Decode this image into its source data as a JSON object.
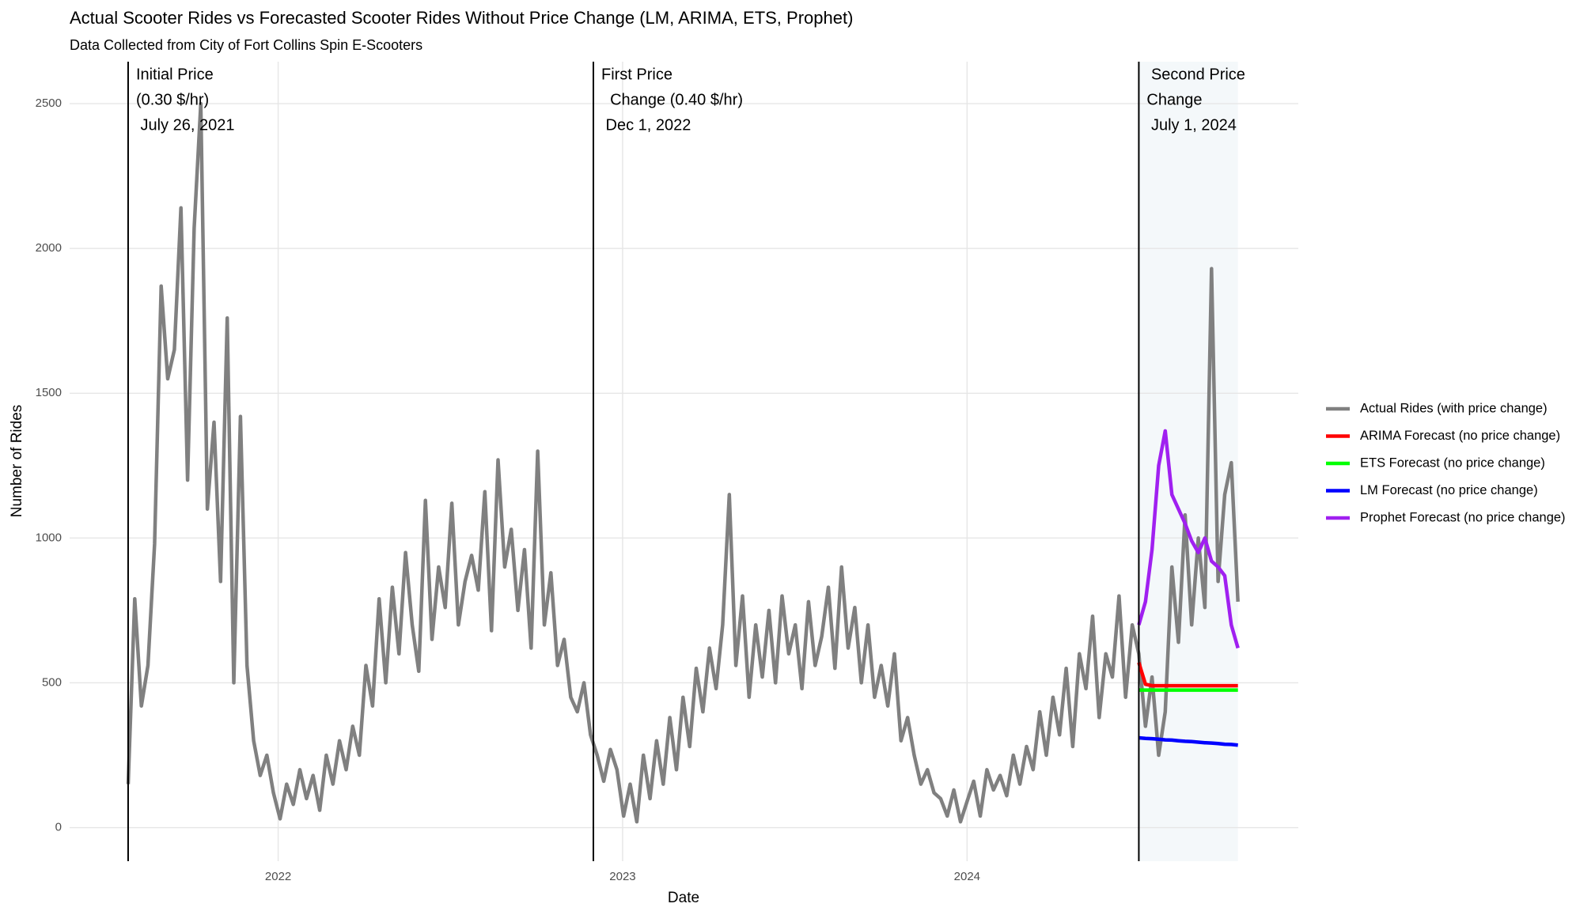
{
  "chart_data": {
    "type": "line",
    "title": "Actual Scooter Rides vs Forecasted Scooter Rides Without Price Change (LM, ARIMA, ETS, Prophet)",
    "subtitle": "Data Collected from City of Fort Collins Spin E-Scooters",
    "x_label": "Date",
    "y_label": "Number of Rides",
    "xlim": [
      "2021-05-25",
      "2024-12-17"
    ],
    "xticks": [
      {
        "value": "2022-01-01",
        "label": "2022"
      },
      {
        "value": "2023-01-01",
        "label": "2023"
      },
      {
        "value": "2024-01-01",
        "label": "2024"
      }
    ],
    "ylim": [
      -116,
      2645
    ],
    "yticks": [
      0,
      500,
      1000,
      1500,
      2000,
      2500
    ],
    "grid": true,
    "legend": "right",
    "annotations": [
      {
        "x": "2021-07-26",
        "lines": [
          "Initial Price",
          "(0.30 $/hr)",
          " July 26, 2021"
        ]
      },
      {
        "x": "2022-12-01",
        "lines": [
          "First Price",
          "  Change (0.40 $/hr)",
          " Dec 1, 2022"
        ]
      },
      {
        "x": "2024-07-01",
        "lines": [
          " Second Price",
          "Change",
          " July 1, 2024"
        ]
      }
    ],
    "series": [
      {
        "name": "Actual Rides (with price change)",
        "color": "#808080",
        "x": [
          "2021-07-26",
          "2021-08-02",
          "2021-08-09",
          "2021-08-16",
          "2021-08-23",
          "2021-08-30",
          "2021-09-06",
          "2021-09-13",
          "2021-09-20",
          "2021-09-27",
          "2021-10-04",
          "2021-10-11",
          "2021-10-18",
          "2021-10-25",
          "2021-11-01",
          "2021-11-08",
          "2021-11-15",
          "2021-11-22",
          "2021-11-29",
          "2021-12-06",
          "2021-12-13",
          "2021-12-20",
          "2021-12-27",
          "2022-01-03",
          "2022-01-10",
          "2022-01-17",
          "2022-01-24",
          "2022-01-31",
          "2022-02-07",
          "2022-02-14",
          "2022-02-21",
          "2022-02-28",
          "2022-03-07",
          "2022-03-14",
          "2022-03-21",
          "2022-03-28",
          "2022-04-04",
          "2022-04-11",
          "2022-04-18",
          "2022-04-25",
          "2022-05-02",
          "2022-05-09",
          "2022-05-16",
          "2022-05-23",
          "2022-05-30",
          "2022-06-06",
          "2022-06-13",
          "2022-06-20",
          "2022-06-27",
          "2022-07-04",
          "2022-07-11",
          "2022-07-18",
          "2022-07-25",
          "2022-08-01",
          "2022-08-08",
          "2022-08-15",
          "2022-08-22",
          "2022-08-29",
          "2022-09-05",
          "2022-09-12",
          "2022-09-19",
          "2022-09-26",
          "2022-10-03",
          "2022-10-10",
          "2022-10-17",
          "2022-10-24",
          "2022-10-31",
          "2022-11-07",
          "2022-11-14",
          "2022-11-21",
          "2022-11-28",
          "2022-12-05",
          "2022-12-12",
          "2022-12-19",
          "2022-12-26",
          "2023-01-02",
          "2023-01-09",
          "2023-01-16",
          "2023-01-23",
          "2023-01-30",
          "2023-02-06",
          "2023-02-13",
          "2023-02-20",
          "2023-02-27",
          "2023-03-06",
          "2023-03-13",
          "2023-03-20",
          "2023-03-27",
          "2023-04-03",
          "2023-04-10",
          "2023-04-17",
          "2023-04-24",
          "2023-05-01",
          "2023-05-08",
          "2023-05-15",
          "2023-05-22",
          "2023-05-29",
          "2023-06-05",
          "2023-06-12",
          "2023-06-19",
          "2023-06-26",
          "2023-07-03",
          "2023-07-10",
          "2023-07-17",
          "2023-07-24",
          "2023-07-31",
          "2023-08-07",
          "2023-08-14",
          "2023-08-21",
          "2023-08-28",
          "2023-09-04",
          "2023-09-11",
          "2023-09-18",
          "2023-09-25",
          "2023-10-02",
          "2023-10-09",
          "2023-10-16",
          "2023-10-23",
          "2023-10-30",
          "2023-11-06",
          "2023-11-13",
          "2023-11-20",
          "2023-11-27",
          "2023-12-04",
          "2023-12-11",
          "2023-12-18",
          "2023-12-25",
          "2024-01-01",
          "2024-01-08",
          "2024-01-15",
          "2024-01-22",
          "2024-01-29",
          "2024-02-05",
          "2024-02-12",
          "2024-02-19",
          "2024-02-26",
          "2024-03-04",
          "2024-03-11",
          "2024-03-18",
          "2024-03-25",
          "2024-04-01",
          "2024-04-08",
          "2024-04-15",
          "2024-04-22",
          "2024-04-29",
          "2024-05-06",
          "2024-05-13",
          "2024-05-20",
          "2024-05-27",
          "2024-06-03",
          "2024-06-10",
          "2024-06-17",
          "2024-06-24",
          "2024-07-01",
          "2024-07-08",
          "2024-07-15",
          "2024-07-22",
          "2024-07-29",
          "2024-08-05",
          "2024-08-12",
          "2024-08-19",
          "2024-08-26",
          "2024-09-02",
          "2024-09-09",
          "2024-09-16",
          "2024-09-23",
          "2024-09-30",
          "2024-10-07",
          "2024-10-14"
        ],
        "values": [
          150,
          790,
          420,
          560,
          980,
          1870,
          1550,
          1650,
          2140,
          1200,
          2070,
          2500,
          1100,
          1400,
          850,
          1760,
          500,
          1420,
          560,
          300,
          180,
          250,
          120,
          30,
          150,
          80,
          200,
          100,
          180,
          60,
          250,
          150,
          300,
          200,
          350,
          250,
          560,
          420,
          790,
          500,
          830,
          600,
          950,
          700,
          540,
          1130,
          650,
          900,
          760,
          1120,
          700,
          850,
          940,
          820,
          1160,
          680,
          1270,
          900,
          1030,
          750,
          960,
          620,
          1300,
          700,
          880,
          560,
          650,
          450,
          400,
          500,
          320,
          250,
          160,
          270,
          200,
          40,
          150,
          20,
          250,
          100,
          300,
          150,
          380,
          200,
          450,
          280,
          550,
          400,
          620,
          480,
          700,
          1150,
          560,
          800,
          450,
          700,
          520,
          750,
          500,
          800,
          600,
          700,
          480,
          780,
          560,
          660,
          830,
          550,
          900,
          620,
          760,
          500,
          700,
          450,
          560,
          420,
          600,
          300,
          380,
          250,
          150,
          200,
          120,
          100,
          40,
          130,
          20,
          90,
          160,
          40,
          200,
          130,
          180,
          110,
          250,
          150,
          280,
          200,
          400,
          250,
          450,
          320,
          550,
          280,
          600,
          480,
          730,
          380,
          600,
          520,
          800,
          450,
          700,
          600,
          350,
          520,
          250,
          400,
          900,
          640,
          1080,
          700,
          1000,
          760,
          1930,
          850,
          1150,
          1260,
          780
        ]
      },
      {
        "name": "ARIMA Forecast (no price change)",
        "color": "#ff0000",
        "x": [
          "2024-07-01",
          "2024-07-08",
          "2024-07-15",
          "2024-07-22",
          "2024-07-29",
          "2024-08-05",
          "2024-08-12",
          "2024-08-19",
          "2024-08-26",
          "2024-09-02",
          "2024-09-09",
          "2024-09-16",
          "2024-09-23",
          "2024-09-30",
          "2024-10-07",
          "2024-10-14"
        ],
        "values": [
          570,
          495,
          490,
          490,
          490,
          490,
          490,
          490,
          490,
          490,
          490,
          490,
          490,
          490,
          490,
          490
        ]
      },
      {
        "name": "ETS Forecast (no price change)",
        "color": "#00ff00",
        "x": [
          "2024-07-01",
          "2024-07-08",
          "2024-07-15",
          "2024-07-22",
          "2024-07-29",
          "2024-08-05",
          "2024-08-12",
          "2024-08-19",
          "2024-08-26",
          "2024-09-02",
          "2024-09-09",
          "2024-09-16",
          "2024-09-23",
          "2024-09-30",
          "2024-10-07",
          "2024-10-14"
        ],
        "values": [
          475,
          475,
          475,
          475,
          475,
          475,
          475,
          475,
          475,
          475,
          475,
          475,
          475,
          475,
          475,
          475
        ]
      },
      {
        "name": "LM Forecast (no price change)",
        "color": "#0000ff",
        "x": [
          "2024-07-01",
          "2024-07-08",
          "2024-07-15",
          "2024-07-22",
          "2024-07-29",
          "2024-08-05",
          "2024-08-12",
          "2024-08-19",
          "2024-08-26",
          "2024-09-02",
          "2024-09-09",
          "2024-09-16",
          "2024-09-23",
          "2024-09-30",
          "2024-10-07",
          "2024-10-14"
        ],
        "values": [
          310,
          308,
          307,
          305,
          303,
          302,
          300,
          298,
          297,
          295,
          293,
          292,
          290,
          288,
          287,
          285
        ]
      },
      {
        "name": "Prophet Forecast (no price change)",
        "color": "#a020f0",
        "x": [
          "2024-07-01",
          "2024-07-08",
          "2024-07-15",
          "2024-07-22",
          "2024-07-29",
          "2024-08-05",
          "2024-08-12",
          "2024-08-19",
          "2024-08-26",
          "2024-09-02",
          "2024-09-09",
          "2024-09-16",
          "2024-09-23",
          "2024-09-30",
          "2024-10-07",
          "2024-10-14"
        ],
        "values": [
          700,
          780,
          960,
          1250,
          1370,
          1150,
          1100,
          1050,
          990,
          950,
          1000,
          920,
          900,
          870,
          700,
          620
        ]
      }
    ]
  }
}
